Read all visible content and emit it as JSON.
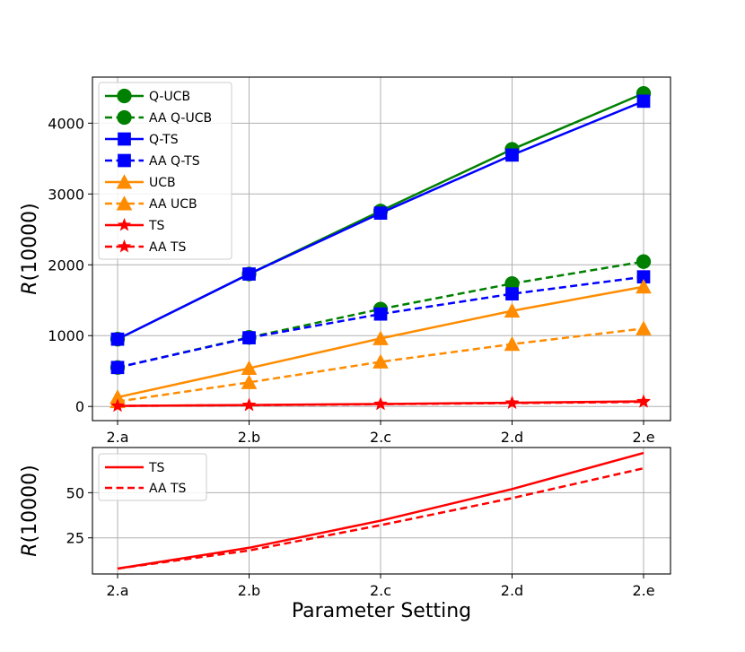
{
  "chart_data": [
    {
      "type": "line",
      "categories": [
        "2.a",
        "2.b",
        "2.c",
        "2.d",
        "2.e"
      ],
      "ylabel": "R(10000)",
      "xlabel": "",
      "ylim": [
        -200,
        4650
      ],
      "yticks": [
        0,
        1000,
        2000,
        3000,
        4000
      ],
      "grid": true,
      "legend_position": "top-left",
      "series": [
        {
          "name": "Q-UCB",
          "values": [
            950,
            1870,
            2760,
            3630,
            4420
          ],
          "color": "#008000",
          "dash": "solid",
          "marker": "circle"
        },
        {
          "name": "AA Q-UCB",
          "values": [
            550,
            975,
            1375,
            1735,
            2045
          ],
          "color": "#008000",
          "dash": "dashed",
          "marker": "circle"
        },
        {
          "name": "Q-TS",
          "values": [
            950,
            1870,
            2730,
            3550,
            4310
          ],
          "color": "#0000ff",
          "dash": "solid",
          "marker": "square"
        },
        {
          "name": "AA Q-TS",
          "values": [
            550,
            970,
            1305,
            1590,
            1830
          ],
          "color": "#0000ff",
          "dash": "dashed",
          "marker": "square"
        },
        {
          "name": "UCB",
          "values": [
            130,
            540,
            960,
            1350,
            1690
          ],
          "color": "#ff8c00",
          "dash": "solid",
          "marker": "triangle"
        },
        {
          "name": "AA UCB",
          "values": [
            70,
            340,
            630,
            880,
            1100
          ],
          "color": "#ff8c00",
          "dash": "dashed",
          "marker": "triangle"
        },
        {
          "name": "TS",
          "values": [
            8,
            20,
            35,
            52,
            72
          ],
          "color": "#ff0000",
          "dash": "solid",
          "marker": "star"
        },
        {
          "name": "AA TS",
          "values": [
            8,
            18,
            32,
            47,
            64
          ],
          "color": "#ff0000",
          "dash": "dashed",
          "marker": "star"
        }
      ]
    },
    {
      "type": "line",
      "categories": [
        "2.a",
        "2.b",
        "2.c",
        "2.d",
        "2.e"
      ],
      "ylabel": "R(10000)",
      "xlabel": "Parameter Setting",
      "ylim": [
        5,
        75
      ],
      "yticks": [
        25,
        50
      ],
      "grid": true,
      "legend_position": "top-left",
      "series": [
        {
          "name": "TS",
          "values": [
            8,
            19.5,
            34.5,
            52,
            72
          ],
          "color": "#ff0000",
          "dash": "solid",
          "marker": "none"
        },
        {
          "name": "AA TS",
          "values": [
            8,
            18,
            32,
            47,
            63.5
          ],
          "color": "#ff0000",
          "dash": "dashed",
          "marker": "none"
        }
      ]
    }
  ]
}
